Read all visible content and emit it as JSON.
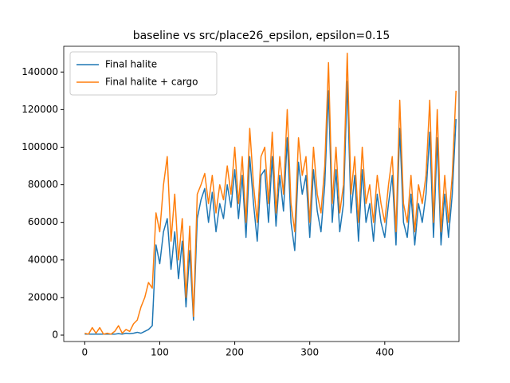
{
  "chart_data": {
    "type": "line",
    "title": "baseline vs src/place26_epsilon, epsilon=0.15",
    "x": [
      0,
      5,
      10,
      15,
      20,
      25,
      30,
      35,
      40,
      45,
      50,
      55,
      60,
      65,
      70,
      75,
      80,
      85,
      90,
      95,
      100,
      105,
      110,
      115,
      120,
      125,
      130,
      135,
      140,
      145,
      150,
      155,
      160,
      165,
      170,
      175,
      180,
      185,
      190,
      195,
      200,
      205,
      210,
      215,
      220,
      225,
      230,
      235,
      240,
      245,
      250,
      255,
      260,
      265,
      270,
      275,
      280,
      285,
      290,
      295,
      300,
      305,
      310,
      315,
      320,
      325,
      330,
      335,
      340,
      345,
      350,
      355,
      360,
      365,
      370,
      375,
      380,
      385,
      390,
      395,
      400,
      405,
      410,
      415,
      420,
      425,
      430,
      435,
      440,
      445,
      450,
      455,
      460,
      465,
      470,
      475,
      480,
      485,
      490,
      495
    ],
    "series": [
      {
        "name": "Final halite",
        "color": "#1f77b4",
        "values": [
          500,
          500,
          500,
          500,
          500,
          500,
          500,
          500,
          500,
          800,
          500,
          1000,
          800,
          1000,
          1500,
          1000,
          2000,
          3000,
          5000,
          48000,
          38000,
          55000,
          62000,
          35000,
          55000,
          30000,
          50000,
          15000,
          45000,
          8000,
          62000,
          72000,
          78000,
          60000,
          76000,
          55000,
          70000,
          62000,
          80000,
          68000,
          88000,
          62000,
          85000,
          52000,
          95000,
          70000,
          50000,
          85000,
          88000,
          60000,
          95000,
          58000,
          85000,
          66000,
          105000,
          60000,
          45000,
          92000,
          75000,
          85000,
          52000,
          88000,
          66000,
          55000,
          80000,
          130000,
          60000,
          88000,
          55000,
          70000,
          135000,
          65000,
          85000,
          50000,
          88000,
          60000,
          70000,
          50000,
          75000,
          60000,
          52000,
          70000,
          85000,
          48000,
          110000,
          60000,
          52000,
          75000,
          48000,
          70000,
          60000,
          75000,
          108000,
          52000,
          105000,
          48000,
          75000,
          52000,
          75000,
          115000
        ]
      },
      {
        "name": "Final halite + cargo",
        "color": "#ff7f0e",
        "values": [
          1000,
          500,
          4000,
          1000,
          4000,
          500,
          1000,
          500,
          2000,
          5000,
          1000,
          3000,
          2000,
          6000,
          8000,
          15000,
          20000,
          28000,
          25000,
          65000,
          55000,
          80000,
          95000,
          50000,
          75000,
          40000,
          62000,
          20000,
          58000,
          10000,
          75000,
          80000,
          86000,
          70000,
          85000,
          65000,
          80000,
          72000,
          90000,
          75000,
          100000,
          70000,
          95000,
          60000,
          110000,
          80000,
          60000,
          95000,
          100000,
          70000,
          108000,
          65000,
          95000,
          75000,
          120000,
          70000,
          55000,
          105000,
          85000,
          95000,
          60000,
          100000,
          75000,
          65000,
          90000,
          145000,
          70000,
          100000,
          65000,
          80000,
          150000,
          75000,
          95000,
          60000,
          100000,
          70000,
          80000,
          60000,
          85000,
          70000,
          60000,
          80000,
          95000,
          55000,
          125000,
          70000,
          60000,
          85000,
          55000,
          80000,
          70000,
          85000,
          125000,
          60000,
          120000,
          55000,
          85000,
          60000,
          85000,
          130000
        ]
      }
    ],
    "xlim": [
      -28,
      499
    ],
    "ylim": [
      -3400,
      153700
    ],
    "xticks": [
      0,
      100,
      200,
      300,
      400
    ],
    "yticks": [
      0,
      20000,
      40000,
      60000,
      80000,
      100000,
      120000,
      140000
    ],
    "grid": false,
    "legend": "upper-left"
  }
}
